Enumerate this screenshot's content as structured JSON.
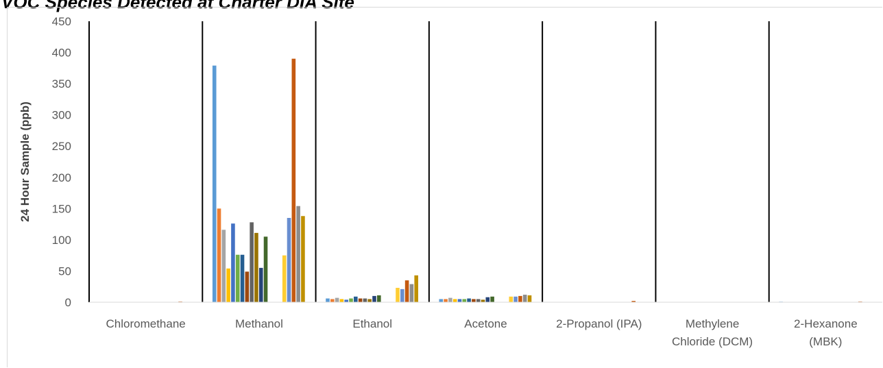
{
  "chart_data": {
    "type": "bar",
    "title": "VOC Species Detected at Charter DIA Site",
    "xlabel": "",
    "ylabel": "24 Hour Sample (ppb)",
    "ylim": [
      0,
      450
    ],
    "yticks": [
      0,
      50,
      100,
      150,
      200,
      250,
      300,
      350,
      400,
      450
    ],
    "grid": false,
    "legend": "none",
    "categories": [
      "Chloromethane",
      "Methanol",
      "Ethanol",
      "Acetone",
      "2-Propanol (IPA)",
      "Methylene Chloride (DCM)",
      "2-Hexanone (MBK)"
    ],
    "category_label_lines": [
      [
        "Chloromethane"
      ],
      [
        "Methanol"
      ],
      [
        "Ethanol"
      ],
      [
        "Acetone"
      ],
      [
        "2-Propanol (IPA)"
      ],
      [
        "Methylene",
        "Chloride (DCM)"
      ],
      [
        "2-Hexanone",
        "(MBK)"
      ]
    ],
    "series_colors": [
      "#5b9bd5",
      "#ed7d31",
      "#a5a5a5",
      "#ffc000",
      "#4472c4",
      "#70ad47",
      "#255e91",
      "#9e480e",
      "#636363",
      "#997300",
      "#264478",
      "#43682b",
      "#7cafdd",
      "#f1975a",
      "#b7b7b7",
      "#ffcd33",
      "#698ed0",
      "#c55a11",
      "#8c8c8c",
      "#bf9000"
    ],
    "values": [
      [
        0.5,
        0.4,
        0.5,
        0.3,
        0.4,
        0.4,
        0.4,
        0.3,
        0.4,
        0.4,
        0.3,
        0.4,
        0.3,
        0.5,
        0.4,
        0.3,
        0.4,
        1.0,
        0.5,
        0.4
      ],
      [
        379,
        150,
        116,
        54,
        126,
        76,
        76,
        49,
        128,
        111,
        55,
        105,
        0,
        0,
        0,
        75,
        135,
        390,
        154,
        138
      ],
      [
        6,
        5,
        7,
        5,
        4,
        6,
        9,
        6,
        6,
        5,
        10,
        11,
        0,
        0,
        0,
        23,
        21,
        35,
        29,
        43
      ],
      [
        5,
        5,
        7,
        5,
        5,
        5,
        6,
        5,
        5,
        4,
        8,
        9,
        0,
        0,
        0,
        9,
        9,
        10,
        12,
        11
      ],
      [
        0.5,
        0.4,
        0.5,
        0.3,
        0.4,
        0.4,
        0.4,
        0.3,
        0.4,
        0.4,
        0.3,
        0.4,
        0.3,
        0.4,
        0.4,
        0.3,
        0.4,
        2.0,
        0.5,
        0.4
      ],
      [
        0.4,
        0.4,
        0.4,
        0.3,
        0.4,
        0.4,
        0.3,
        0.3,
        0.4,
        0.4,
        0.3,
        0.4,
        0.3,
        0.4,
        0.4,
        0.3,
        0.4,
        0.4,
        0.4,
        0.4
      ],
      [
        0.8,
        0.4,
        0.5,
        0.3,
        0.4,
        0.4,
        0.4,
        0.3,
        0.4,
        0.4,
        0.3,
        0.4,
        0.3,
        0.4,
        0.4,
        0.3,
        0.4,
        1.0,
        0.5,
        0.4
      ]
    ]
  }
}
